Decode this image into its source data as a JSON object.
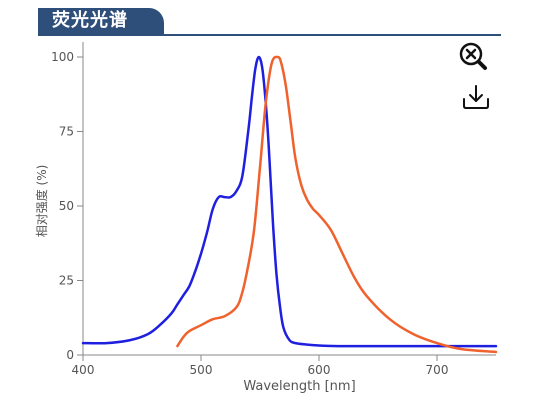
{
  "panel": {
    "title": "荧光光谱"
  },
  "toolbar": {
    "zoom_icon": "zoom-reset-icon",
    "download_icon": "download-icon"
  },
  "chart_data": {
    "type": "line",
    "title": "",
    "xlabel": "Wavelength [nm]",
    "ylabel": "相对强度 (%)",
    "xlim": [
      400,
      750
    ],
    "ylim": [
      0,
      100
    ],
    "xticks": [
      400,
      500,
      600,
      700
    ],
    "yticks": [
      0,
      25,
      50,
      75,
      100
    ],
    "grid": false,
    "legend": "none",
    "series": [
      {
        "color": "#1f1fe0",
        "x": [
          400,
          420,
          440,
          455,
          465,
          475,
          480,
          485,
          490,
          495,
          500,
          505,
          510,
          515,
          520,
          525,
          530,
          535,
          540,
          543,
          546,
          549,
          552,
          555,
          558,
          561,
          564,
          567,
          570,
          575,
          580,
          590,
          600,
          620,
          650,
          700,
          750
        ],
        "y": [
          4,
          4,
          5,
          7,
          10,
          14,
          17,
          20,
          23,
          28,
          34,
          41,
          49,
          53,
          53,
          53,
          55,
          60,
          75,
          86,
          96,
          100,
          96,
          84,
          66,
          44,
          27,
          16,
          9,
          5,
          4,
          3.5,
          3.2,
          3,
          3,
          3,
          3
        ]
      },
      {
        "color": "#f0622d",
        "x": [
          480,
          485,
          490,
          500,
          510,
          520,
          530,
          535,
          540,
          545,
          550,
          555,
          560,
          565,
          568,
          572,
          576,
          580,
          585,
          590,
          595,
          600,
          610,
          620,
          630,
          640,
          660,
          680,
          700,
          720,
          750
        ],
        "y": [
          3,
          6,
          8,
          10,
          12,
          13,
          16,
          21,
          30,
          42,
          63,
          85,
          98,
          100,
          98,
          90,
          78,
          66,
          57,
          52,
          49,
          47,
          42,
          34,
          26,
          20,
          12,
          7,
          4,
          2,
          1
        ]
      }
    ]
  }
}
